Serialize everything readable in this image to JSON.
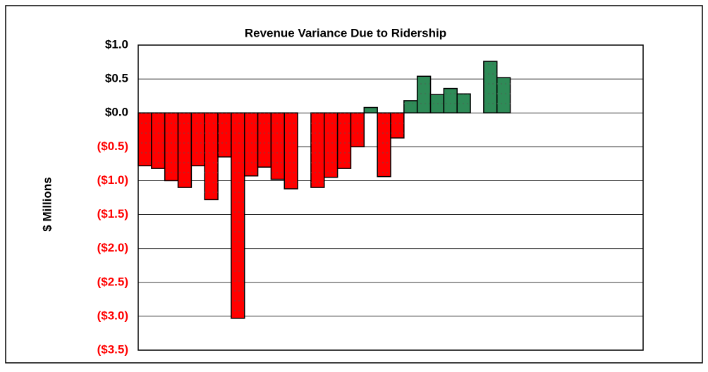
{
  "chart_data": {
    "type": "bar",
    "title": "Revenue Variance Due to Ridership",
    "ylabel": "$ Millions",
    "categories": [
      null,
      null,
      null,
      null,
      null,
      null,
      null,
      null,
      null,
      null,
      null,
      null,
      null,
      null,
      null,
      null,
      null,
      null,
      null,
      null,
      null,
      null,
      null,
      null,
      null,
      null,
      null,
      null,
      null,
      null,
      null,
      null,
      null,
      null,
      null,
      null,
      null,
      null
    ],
    "values": [
      -0.78,
      -0.82,
      -1.0,
      -1.1,
      -0.78,
      -1.28,
      -0.65,
      -3.03,
      -0.93,
      -0.8,
      -0.98,
      -1.12,
      null,
      -1.1,
      -0.95,
      -0.82,
      -0.5,
      0.08,
      -0.94,
      -0.37,
      0.18,
      0.54,
      0.27,
      0.36,
      0.28,
      null,
      0.76,
      0.52,
      null,
      null,
      null,
      null,
      null,
      null,
      null,
      null,
      null,
      null
    ],
    "positive_color": "#2e8b57",
    "negative_color": "#ff0000",
    "ylim": [
      -3.5,
      1.0
    ],
    "yticks": [
      {
        "value": 1.0,
        "label": "$1.0"
      },
      {
        "value": 0.5,
        "label": "$0.5"
      },
      {
        "value": 0,
        "label": "$0.0"
      },
      {
        "value": -0.5,
        "label": "($0.5)"
      },
      {
        "value": -1.0,
        "label": "($1.0)"
      },
      {
        "value": -1.5,
        "label": "($1.5)"
      },
      {
        "value": -2.0,
        "label": "($2.0)"
      },
      {
        "value": -2.5,
        "label": "($2.5)"
      },
      {
        "value": -3.0,
        "label": "($3.0)"
      },
      {
        "value": -3.5,
        "label": "($3.5)"
      }
    ],
    "grid": true
  }
}
